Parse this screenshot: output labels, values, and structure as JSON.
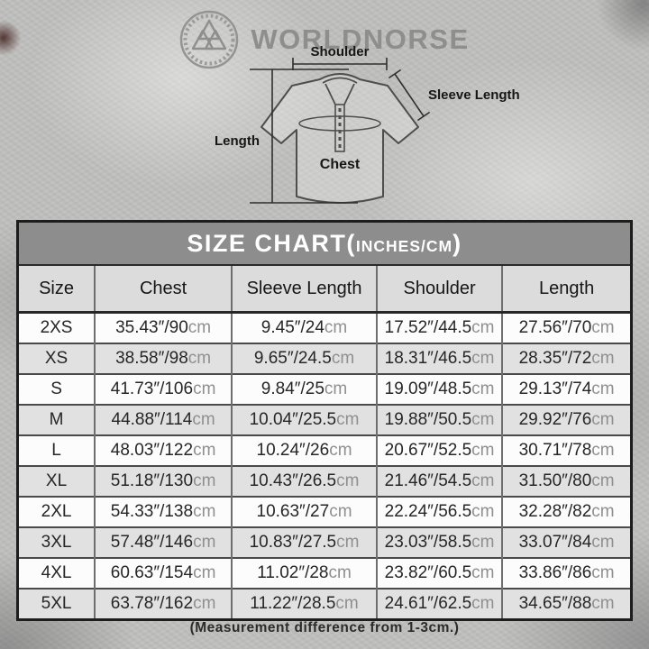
{
  "brand": {
    "name": "WORLDNORSE",
    "logo": "valknut-rune-circle"
  },
  "diagram": {
    "labels": {
      "shoulder": "Shoulder",
      "sleeve_length": "Sleeve Length",
      "length": "Length",
      "chest": "Chest"
    }
  },
  "size_chart": {
    "title_open": "SIZE CHART(",
    "title_unit": "INCHES/CM",
    "title_close": ")",
    "columns": [
      "Size",
      "Chest",
      "Sleeve Length",
      "Shoulder",
      "Length"
    ],
    "rows": [
      {
        "size": "2XS",
        "cells": [
          {
            "value": "35.43″/90",
            "unit": "cm"
          },
          {
            "value": "9.45″/24",
            "unit": "cm"
          },
          {
            "value": "17.52″/44.5",
            "unit": "cm"
          },
          {
            "value": "27.56″/70",
            "unit": "cm"
          }
        ]
      },
      {
        "size": "XS",
        "cells": [
          {
            "value": "38.58″/98",
            "unit": "cm"
          },
          {
            "value": "9.65″/24.5",
            "unit": "cm"
          },
          {
            "value": "18.31″/46.5",
            "unit": "cm"
          },
          {
            "value": "28.35″/72",
            "unit": "cm"
          }
        ]
      },
      {
        "size": "S",
        "cells": [
          {
            "value": "41.73″/106",
            "unit": "cm"
          },
          {
            "value": "9.84″/25",
            "unit": "cm"
          },
          {
            "value": "19.09″/48.5",
            "unit": "cm"
          },
          {
            "value": "29.13″/74",
            "unit": "cm"
          }
        ]
      },
      {
        "size": "M",
        "cells": [
          {
            "value": "44.88″/114",
            "unit": "cm"
          },
          {
            "value": "10.04″/25.5",
            "unit": "cm"
          },
          {
            "value": "19.88″/50.5",
            "unit": "cm"
          },
          {
            "value": "29.92″/76",
            "unit": "cm"
          }
        ]
      },
      {
        "size": "L",
        "cells": [
          {
            "value": "48.03″/122",
            "unit": "cm"
          },
          {
            "value": "10.24″/26",
            "unit": "cm"
          },
          {
            "value": "20.67″/52.5",
            "unit": "cm"
          },
          {
            "value": "30.71″/78",
            "unit": "cm"
          }
        ]
      },
      {
        "size": "XL",
        "cells": [
          {
            "value": "51.18″/130",
            "unit": "cm"
          },
          {
            "value": "10.43″/26.5",
            "unit": "cm"
          },
          {
            "value": "21.46″/54.5",
            "unit": "cm"
          },
          {
            "value": "31.50″/80",
            "unit": "cm"
          }
        ]
      },
      {
        "size": "2XL",
        "cells": [
          {
            "value": "54.33″/138",
            "unit": "cm"
          },
          {
            "value": "10.63″/27",
            "unit": "cm"
          },
          {
            "value": "22.24″/56.5",
            "unit": "cm"
          },
          {
            "value": "32.28″/82",
            "unit": "cm"
          }
        ]
      },
      {
        "size": "3XL",
        "cells": [
          {
            "value": "57.48″/146",
            "unit": "cm"
          },
          {
            "value": "10.83″/27.5",
            "unit": "cm"
          },
          {
            "value": "23.03″/58.5",
            "unit": "cm"
          },
          {
            "value": "33.07″/84",
            "unit": "cm"
          }
        ]
      },
      {
        "size": "4XL",
        "cells": [
          {
            "value": "60.63″/154",
            "unit": "cm"
          },
          {
            "value": "11.02″/28",
            "unit": "cm"
          },
          {
            "value": "23.82″/60.5",
            "unit": "cm"
          },
          {
            "value": "33.86″/86",
            "unit": "cm"
          }
        ]
      },
      {
        "size": "5XL",
        "cells": [
          {
            "value": "63.78″/162",
            "unit": "cm"
          },
          {
            "value": "11.22″/28.5",
            "unit": "cm"
          },
          {
            "value": "24.61″/62.5",
            "unit": "cm"
          },
          {
            "value": "34.65″/88",
            "unit": "cm"
          }
        ]
      }
    ]
  },
  "footnote": "(Measurement difference from 1-3cm.)"
}
